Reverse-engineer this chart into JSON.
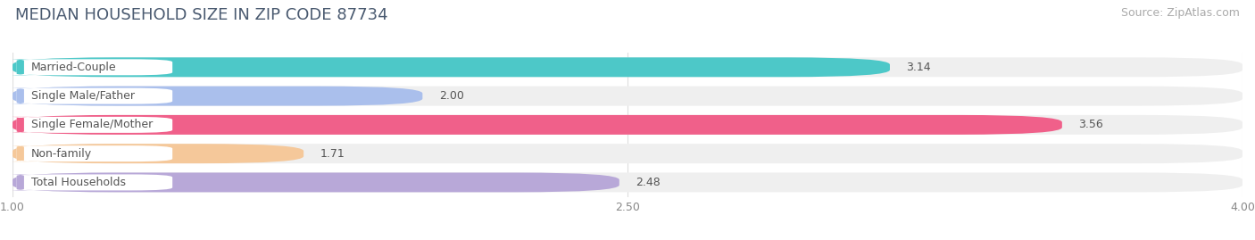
{
  "title": "MEDIAN HOUSEHOLD SIZE IN ZIP CODE 87734",
  "source": "Source: ZipAtlas.com",
  "categories": [
    "Married-Couple",
    "Single Male/Father",
    "Single Female/Mother",
    "Non-family",
    "Total Households"
  ],
  "values": [
    3.14,
    2.0,
    3.56,
    1.71,
    2.48
  ],
  "bar_colors": [
    "#4dc8c8",
    "#aabfec",
    "#f0608a",
    "#f5c89a",
    "#b8a8d8"
  ],
  "label_accent_colors": [
    "#4dc8c8",
    "#aabfec",
    "#f0608a",
    "#f5c89a",
    "#b8a8d8"
  ],
  "xlim": [
    1.0,
    4.0
  ],
  "xticks": [
    1.0,
    2.5,
    4.0
  ],
  "xtick_labels": [
    "1.00",
    "2.50",
    "4.00"
  ],
  "value_labels": [
    "3.14",
    "2.00",
    "3.56",
    "1.71",
    "2.48"
  ],
  "title_fontsize": 13,
  "source_fontsize": 9,
  "label_fontsize": 9,
  "value_fontsize": 9,
  "background_color": "#ffffff",
  "bar_background_color": "#efefef",
  "title_color": "#4a5a70",
  "source_color": "#aaaaaa",
  "label_color": "#555555",
  "value_color": "#555555",
  "grid_color": "#dddddd"
}
